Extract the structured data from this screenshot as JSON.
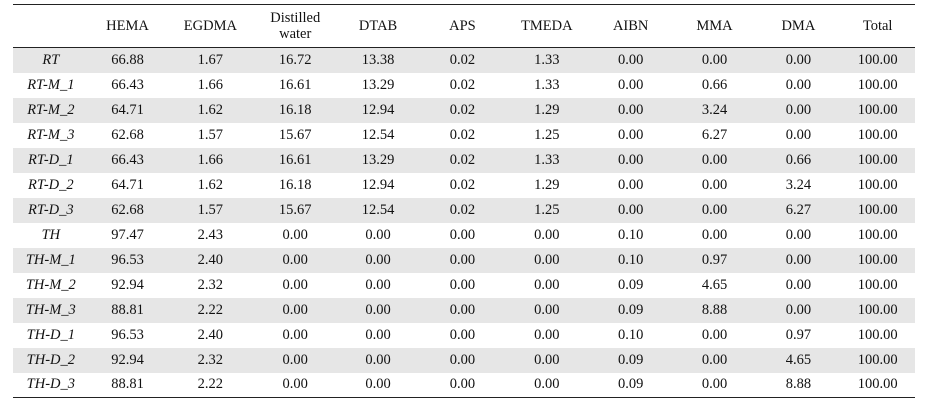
{
  "table": {
    "headers": [
      "",
      "HEMA",
      "EGDMA",
      "Distilled water",
      "DTAB",
      "APS",
      "TMEDA",
      "AIBN",
      "MMA",
      "DMA",
      "Total"
    ],
    "rows": [
      {
        "label": "RT",
        "values": [
          "66.88",
          "1.67",
          "16.72",
          "13.38",
          "0.02",
          "1.33",
          "0.00",
          "0.00",
          "0.00",
          "100.00"
        ]
      },
      {
        "label": "RT-M_1",
        "values": [
          "66.43",
          "1.66",
          "16.61",
          "13.29",
          "0.02",
          "1.33",
          "0.00",
          "0.66",
          "0.00",
          "100.00"
        ]
      },
      {
        "label": "RT-M_2",
        "values": [
          "64.71",
          "1.62",
          "16.18",
          "12.94",
          "0.02",
          "1.29",
          "0.00",
          "3.24",
          "0.00",
          "100.00"
        ]
      },
      {
        "label": "RT-M_3",
        "values": [
          "62.68",
          "1.57",
          "15.67",
          "12.54",
          "0.02",
          "1.25",
          "0.00",
          "6.27",
          "0.00",
          "100.00"
        ]
      },
      {
        "label": "RT-D_1",
        "values": [
          "66.43",
          "1.66",
          "16.61",
          "13.29",
          "0.02",
          "1.33",
          "0.00",
          "0.00",
          "0.66",
          "100.00"
        ]
      },
      {
        "label": "RT-D_2",
        "values": [
          "64.71",
          "1.62",
          "16.18",
          "12.94",
          "0.02",
          "1.29",
          "0.00",
          "0.00",
          "3.24",
          "100.00"
        ]
      },
      {
        "label": "RT-D_3",
        "values": [
          "62.68",
          "1.57",
          "15.67",
          "12.54",
          "0.02",
          "1.25",
          "0.00",
          "0.00",
          "6.27",
          "100.00"
        ]
      },
      {
        "label": "TH",
        "values": [
          "97.47",
          "2.43",
          "0.00",
          "0.00",
          "0.00",
          "0.00",
          "0.10",
          "0.00",
          "0.00",
          "100.00"
        ]
      },
      {
        "label": "TH-M_1",
        "values": [
          "96.53",
          "2.40",
          "0.00",
          "0.00",
          "0.00",
          "0.00",
          "0.10",
          "0.97",
          "0.00",
          "100.00"
        ]
      },
      {
        "label": "TH-M_2",
        "values": [
          "92.94",
          "2.32",
          "0.00",
          "0.00",
          "0.00",
          "0.00",
          "0.09",
          "4.65",
          "0.00",
          "100.00"
        ]
      },
      {
        "label": "TH-M_3",
        "values": [
          "88.81",
          "2.22",
          "0.00",
          "0.00",
          "0.00",
          "0.00",
          "0.09",
          "8.88",
          "0.00",
          "100.00"
        ]
      },
      {
        "label": "TH-D_1",
        "values": [
          "96.53",
          "2.40",
          "0.00",
          "0.00",
          "0.00",
          "0.00",
          "0.10",
          "0.00",
          "0.97",
          "100.00"
        ]
      },
      {
        "label": "TH-D_2",
        "values": [
          "92.94",
          "2.32",
          "0.00",
          "0.00",
          "0.00",
          "0.00",
          "0.09",
          "0.00",
          "4.65",
          "100.00"
        ]
      },
      {
        "label": "TH-D_3",
        "values": [
          "88.81",
          "2.22",
          "0.00",
          "0.00",
          "0.00",
          "0.00",
          "0.09",
          "0.00",
          "8.88",
          "100.00"
        ]
      }
    ],
    "shaded_row_color": "#e6e6e6",
    "rule_color": "#222222"
  }
}
